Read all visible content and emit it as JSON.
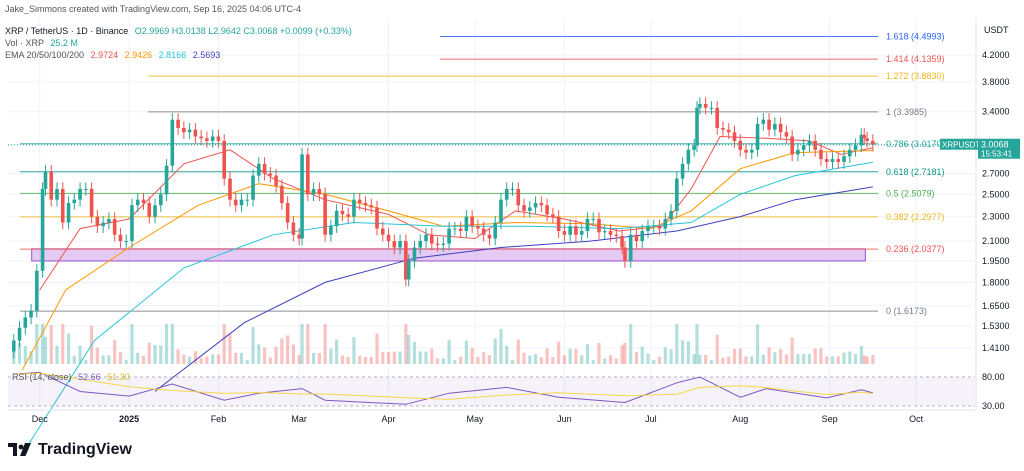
{
  "header": {
    "author_line": "Jake_Simmons created with TradingView.com, Sep 16, 2025 04:06 UTC-4",
    "symbol_line": "XRP / TetherUS · 1D · Binance",
    "ohlc_line": "O2.9969 H3.0138 L2.9642 C3.0068 +0.0099 (+0.33%)",
    "vol_label": "Vol · XRP",
    "vol_value": "25.2 M",
    "ema_label": "EMA 20/50/100/200",
    "ema_values": [
      "2.9724",
      "2.9426",
      "2.8166",
      "2.5693"
    ]
  },
  "brand": {
    "name": "TradingView"
  },
  "price_label": {
    "symbol": "XRPUSDT",
    "price": "3.0068",
    "countdown": "15:53:41"
  },
  "colors": {
    "up": "#26a69a",
    "down": "#ef5350",
    "ema20": "#ef5350",
    "ema50": "#ff9800",
    "ema100": "#26c6da",
    "ema200": "#3f3fbf",
    "rsi": "#7e57c2",
    "rsi_ma": "#f7d74a",
    "zone": "#c58ae5"
  },
  "chart_data": {
    "type": "candlestick",
    "title": "XRP / TetherUS · 1D · Binance",
    "currency": "USDT",
    "y_axis": {
      "scale": "log",
      "ticks": [
        "4.2000",
        "3.8000",
        "3.4000",
        "3.0000",
        "2.7000",
        "2.5000",
        "2.3000",
        "2.1000",
        "1.9500",
        "1.8000",
        "1.6500",
        "1.5300",
        "1.4100"
      ]
    },
    "x_axis": {
      "ticks": [
        "Dec",
        "2025",
        "Feb",
        "Mar",
        "Apr",
        "May",
        "Jun",
        "Jul",
        "Aug",
        "Sep",
        "Oct"
      ]
    },
    "fib_levels": [
      {
        "ratio": "1.618",
        "price": 4.4993,
        "label": "1.618 (4.4993)",
        "color": "#2962ff"
      },
      {
        "ratio": "1.414",
        "price": 4.1359,
        "label": "1.414 (4.1359)",
        "color": "#ef5350"
      },
      {
        "ratio": "1.272",
        "price": 3.883,
        "label": "1.272 (3.8830)",
        "color": "#f2b51d"
      },
      {
        "ratio": "1",
        "price": 3.3985,
        "label": "1 (3.3985)",
        "color": "#787b86"
      },
      {
        "ratio": "0.786",
        "price": 3.017,
        "label": "0.786 (3.0170)",
        "color": "#26a69a"
      },
      {
        "ratio": "0.618",
        "price": 2.7181,
        "label": "0.618 (2.7181)",
        "color": "#089981"
      },
      {
        "ratio": "0.5",
        "price": 2.5079,
        "label": "0.5 (2.5079)",
        "color": "#4caf50"
      },
      {
        "ratio": "0.382",
        "price": 2.2977,
        "label": "0.382 (2.2977)",
        "color": "#f2b51d"
      },
      {
        "ratio": "0.236",
        "price": 2.0377,
        "label": "0.236 (2.0377)",
        "color": "#ef5350"
      },
      {
        "ratio": "0",
        "price": 1.6173,
        "label": "0 (1.6173)",
        "color": "#787b86"
      }
    ],
    "support_zone": {
      "low": 1.95,
      "high": 2.04,
      "start_date": "2024-12-01",
      "end_date": "2025-09-12"
    },
    "last_close": 3.0068,
    "candles": [
      {
        "date": "2024-11-22",
        "close": 1.45
      },
      {
        "date": "2024-11-24",
        "close": 1.52
      },
      {
        "date": "2024-11-26",
        "close": 1.58
      },
      {
        "date": "2024-11-28",
        "close": 1.62
      },
      {
        "date": "2024-11-30",
        "close": 1.88
      },
      {
        "date": "2024-12-02",
        "close": 2.55
      },
      {
        "date": "2024-12-03",
        "close": 2.72
      },
      {
        "date": "2024-12-05",
        "close": 2.45
      },
      {
        "date": "2024-12-07",
        "close": 2.55
      },
      {
        "date": "2024-12-09",
        "close": 2.25
      },
      {
        "date": "2024-12-11",
        "close": 2.42
      },
      {
        "date": "2024-12-13",
        "close": 2.45
      },
      {
        "date": "2024-12-15",
        "close": 2.55
      },
      {
        "date": "2024-12-17",
        "close": 2.55
      },
      {
        "date": "2024-12-19",
        "close": 2.3
      },
      {
        "date": "2024-12-21",
        "close": 2.22
      },
      {
        "date": "2024-12-23",
        "close": 2.25
      },
      {
        "date": "2024-12-25",
        "close": 2.28
      },
      {
        "date": "2024-12-27",
        "close": 2.15
      },
      {
        "date": "2024-12-29",
        "close": 2.1
      },
      {
        "date": "2024-12-31",
        "close": 2.1
      },
      {
        "date": "2025-01-02",
        "close": 2.4
      },
      {
        "date": "2025-01-04",
        "close": 2.45
      },
      {
        "date": "2025-01-06",
        "close": 2.42
      },
      {
        "date": "2025-01-08",
        "close": 2.3
      },
      {
        "date": "2025-01-10",
        "close": 2.4
      },
      {
        "date": "2025-01-12",
        "close": 2.5
      },
      {
        "date": "2025-01-14",
        "close": 2.78
      },
      {
        "date": "2025-01-16",
        "close": 3.3
      },
      {
        "date": "2025-01-18",
        "close": 3.2
      },
      {
        "date": "2025-01-20",
        "close": 3.15
      },
      {
        "date": "2025-01-22",
        "close": 3.18
      },
      {
        "date": "2025-01-24",
        "close": 3.1
      },
      {
        "date": "2025-01-26",
        "close": 3.08
      },
      {
        "date": "2025-01-28",
        "close": 3.05
      },
      {
        "date": "2025-01-30",
        "close": 3.1
      },
      {
        "date": "2025-02-01",
        "close": 3.05
      },
      {
        "date": "2025-02-03",
        "close": 2.65
      },
      {
        "date": "2025-02-05",
        "close": 2.45
      },
      {
        "date": "2025-02-07",
        "close": 2.4
      },
      {
        "date": "2025-02-09",
        "close": 2.45
      },
      {
        "date": "2025-02-11",
        "close": 2.45
      },
      {
        "date": "2025-02-13",
        "close": 2.68
      },
      {
        "date": "2025-02-15",
        "close": 2.8
      },
      {
        "date": "2025-02-17",
        "close": 2.7
      },
      {
        "date": "2025-02-19",
        "close": 2.68
      },
      {
        "date": "2025-02-21",
        "close": 2.58
      },
      {
        "date": "2025-02-23",
        "close": 2.42
      },
      {
        "date": "2025-02-25",
        "close": 2.25
      },
      {
        "date": "2025-02-27",
        "close": 2.15
      },
      {
        "date": "2025-03-01",
        "close": 2.12
      },
      {
        "date": "2025-03-02",
        "close": 2.9
      },
      {
        "date": "2025-03-04",
        "close": 2.5
      },
      {
        "date": "2025-03-06",
        "close": 2.55
      },
      {
        "date": "2025-03-08",
        "close": 2.5
      },
      {
        "date": "2025-03-10",
        "close": 2.15
      },
      {
        "date": "2025-03-12",
        "close": 2.22
      },
      {
        "date": "2025-03-14",
        "close": 2.35
      },
      {
        "date": "2025-03-16",
        "close": 2.32
      },
      {
        "date": "2025-03-18",
        "close": 2.3
      },
      {
        "date": "2025-03-20",
        "close": 2.45
      },
      {
        "date": "2025-03-22",
        "close": 2.42
      },
      {
        "date": "2025-03-24",
        "close": 2.4
      },
      {
        "date": "2025-03-26",
        "close": 2.38
      },
      {
        "date": "2025-03-28",
        "close": 2.2
      },
      {
        "date": "2025-03-30",
        "close": 2.15
      },
      {
        "date": "2025-04-01",
        "close": 2.1
      },
      {
        "date": "2025-04-03",
        "close": 2.05
      },
      {
        "date": "2025-04-05",
        "close": 2.1
      },
      {
        "date": "2025-04-07",
        "close": 1.82
      },
      {
        "date": "2025-04-08",
        "close": 1.95
      },
      {
        "date": "2025-04-10",
        "close": 2.05
      },
      {
        "date": "2025-04-12",
        "close": 2.1
      },
      {
        "date": "2025-04-14",
        "close": 2.15
      },
      {
        "date": "2025-04-16",
        "close": 2.08
      },
      {
        "date": "2025-04-18",
        "close": 2.07
      },
      {
        "date": "2025-04-20",
        "close": 2.08
      },
      {
        "date": "2025-04-22",
        "close": 2.2
      },
      {
        "date": "2025-04-24",
        "close": 2.2
      },
      {
        "date": "2025-04-26",
        "close": 2.18
      },
      {
        "date": "2025-04-28",
        "close": 2.3
      },
      {
        "date": "2025-04-30",
        "close": 2.22
      },
      {
        "date": "2025-05-02",
        "close": 2.2
      },
      {
        "date": "2025-05-04",
        "close": 2.15
      },
      {
        "date": "2025-05-06",
        "close": 2.12
      },
      {
        "date": "2025-05-08",
        "close": 2.25
      },
      {
        "date": "2025-05-10",
        "close": 2.45
      },
      {
        "date": "2025-05-12",
        "close": 2.55
      },
      {
        "date": "2025-05-14",
        "close": 2.55
      },
      {
        "date": "2025-05-16",
        "close": 2.4
      },
      {
        "date": "2025-05-18",
        "close": 2.35
      },
      {
        "date": "2025-05-20",
        "close": 2.38
      },
      {
        "date": "2025-05-22",
        "close": 2.42
      },
      {
        "date": "2025-05-24",
        "close": 2.4
      },
      {
        "date": "2025-05-26",
        "close": 2.32
      },
      {
        "date": "2025-05-28",
        "close": 2.3
      },
      {
        "date": "2025-05-30",
        "close": 2.18
      },
      {
        "date": "2025-06-01",
        "close": 2.15
      },
      {
        "date": "2025-06-03",
        "close": 2.22
      },
      {
        "date": "2025-06-05",
        "close": 2.15
      },
      {
        "date": "2025-06-07",
        "close": 2.18
      },
      {
        "date": "2025-06-09",
        "close": 2.28
      },
      {
        "date": "2025-06-11",
        "close": 2.28
      },
      {
        "date": "2025-06-13",
        "close": 2.17
      },
      {
        "date": "2025-06-15",
        "close": 2.18
      },
      {
        "date": "2025-06-17",
        "close": 2.15
      },
      {
        "date": "2025-06-19",
        "close": 2.14
      },
      {
        "date": "2025-06-21",
        "close": 2.05
      },
      {
        "date": "2025-06-22",
        "close": 1.95
      },
      {
        "date": "2025-06-24",
        "close": 2.15
      },
      {
        "date": "2025-06-26",
        "close": 2.1
      },
      {
        "date": "2025-06-28",
        "close": 2.18
      },
      {
        "date": "2025-06-30",
        "close": 2.22
      },
      {
        "date": "2025-07-02",
        "close": 2.22
      },
      {
        "date": "2025-07-04",
        "close": 2.2
      },
      {
        "date": "2025-07-06",
        "close": 2.28
      },
      {
        "date": "2025-07-08",
        "close": 2.35
      },
      {
        "date": "2025-07-10",
        "close": 2.65
      },
      {
        "date": "2025-07-12",
        "close": 2.8
      },
      {
        "date": "2025-07-14",
        "close": 2.95
      },
      {
        "date": "2025-07-16",
        "close": 3.0
      },
      {
        "date": "2025-07-17",
        "close": 3.45
      },
      {
        "date": "2025-07-18",
        "close": 3.5
      },
      {
        "date": "2025-07-20",
        "close": 3.45
      },
      {
        "date": "2025-07-22",
        "close": 3.45
      },
      {
        "date": "2025-07-24",
        "close": 3.2
      },
      {
        "date": "2025-07-26",
        "close": 3.18
      },
      {
        "date": "2025-07-28",
        "close": 3.15
      },
      {
        "date": "2025-07-30",
        "close": 3.05
      },
      {
        "date": "2025-08-01",
        "close": 2.95
      },
      {
        "date": "2025-08-03",
        "close": 2.92
      },
      {
        "date": "2025-08-05",
        "close": 2.95
      },
      {
        "date": "2025-08-07",
        "close": 3.25
      },
      {
        "date": "2025-08-09",
        "close": 3.3
      },
      {
        "date": "2025-08-11",
        "close": 3.18
      },
      {
        "date": "2025-08-13",
        "close": 3.25
      },
      {
        "date": "2025-08-15",
        "close": 3.15
      },
      {
        "date": "2025-08-17",
        "close": 3.1
      },
      {
        "date": "2025-08-19",
        "close": 2.9
      },
      {
        "date": "2025-08-21",
        "close": 2.95
      },
      {
        "date": "2025-08-23",
        "close": 3.0
      },
      {
        "date": "2025-08-25",
        "close": 3.05
      },
      {
        "date": "2025-08-27",
        "close": 2.95
      },
      {
        "date": "2025-08-29",
        "close": 2.85
      },
      {
        "date": "2025-08-31",
        "close": 2.82
      },
      {
        "date": "2025-09-02",
        "close": 2.85
      },
      {
        "date": "2025-09-04",
        "close": 2.82
      },
      {
        "date": "2025-09-06",
        "close": 2.88
      },
      {
        "date": "2025-09-08",
        "close": 2.95
      },
      {
        "date": "2025-09-10",
        "close": 3.0
      },
      {
        "date": "2025-09-12",
        "close": 3.12
      },
      {
        "date": "2025-09-13",
        "close": 3.08
      },
      {
        "date": "2025-09-14",
        "close": 3.05
      },
      {
        "date": "2025-09-16",
        "close": 3.0068
      }
    ],
    "ema": {
      "ema20": {
        "name": "EMA 20",
        "points": [
          [
            "2024-12-01",
            1.75
          ],
          [
            "2024-12-15",
            2.2
          ],
          [
            "2025-01-01",
            2.28
          ],
          [
            "2025-01-20",
            2.8
          ],
          [
            "2025-02-05",
            2.95
          ],
          [
            "2025-02-20",
            2.65
          ],
          [
            "2025-03-10",
            2.45
          ],
          [
            "2025-04-01",
            2.32
          ],
          [
            "2025-04-15",
            2.15
          ],
          [
            "2025-05-01",
            2.12
          ],
          [
            "2025-05-15",
            2.35
          ],
          [
            "2025-06-01",
            2.28
          ],
          [
            "2025-06-20",
            2.18
          ],
          [
            "2025-07-05",
            2.22
          ],
          [
            "2025-07-15",
            2.55
          ],
          [
            "2025-07-25",
            3.1
          ],
          [
            "2025-08-10",
            3.08
          ],
          [
            "2025-08-25",
            3.05
          ],
          [
            "2025-09-05",
            2.9
          ],
          [
            "2025-09-16",
            2.9724
          ]
        ]
      },
      "ema50": {
        "name": "EMA 50",
        "points": [
          [
            "2024-11-25",
            1.3
          ],
          [
            "2024-12-10",
            1.75
          ],
          [
            "2025-01-01",
            2.05
          ],
          [
            "2025-01-25",
            2.4
          ],
          [
            "2025-02-15",
            2.6
          ],
          [
            "2025-03-10",
            2.5
          ],
          [
            "2025-04-01",
            2.35
          ],
          [
            "2025-04-20",
            2.22
          ],
          [
            "2025-05-15",
            2.25
          ],
          [
            "2025-06-10",
            2.24
          ],
          [
            "2025-07-01",
            2.2
          ],
          [
            "2025-07-15",
            2.35
          ],
          [
            "2025-08-01",
            2.75
          ],
          [
            "2025-08-20",
            2.92
          ],
          [
            "2025-09-16",
            2.9426
          ]
        ]
      },
      "ema100": {
        "name": "EMA 100",
        "points": [
          [
            "2024-11-25",
            0.95
          ],
          [
            "2024-12-20",
            1.45
          ],
          [
            "2025-01-20",
            1.9
          ],
          [
            "2025-02-20",
            2.15
          ],
          [
            "2025-03-20",
            2.25
          ],
          [
            "2025-04-20",
            2.22
          ],
          [
            "2025-05-20",
            2.22
          ],
          [
            "2025-06-20",
            2.2
          ],
          [
            "2025-07-15",
            2.25
          ],
          [
            "2025-08-01",
            2.5
          ],
          [
            "2025-08-20",
            2.68
          ],
          [
            "2025-09-16",
            2.8166
          ]
        ]
      },
      "ema200": {
        "name": "EMA 200",
        "points": [
          [
            "2025-01-10",
            1.2
          ],
          [
            "2025-02-10",
            1.55
          ],
          [
            "2025-03-10",
            1.8
          ],
          [
            "2025-04-10",
            1.97
          ],
          [
            "2025-05-10",
            2.05
          ],
          [
            "2025-06-10",
            2.1
          ],
          [
            "2025-07-10",
            2.18
          ],
          [
            "2025-08-01",
            2.3
          ],
          [
            "2025-08-20",
            2.45
          ],
          [
            "2025-09-16",
            2.5693
          ]
        ]
      }
    },
    "rsi": {
      "label": "RSI (14, close)",
      "value": "52.66",
      "ma_value": "51.30",
      "upper_band": "80.00",
      "lower_band": "30.00",
      "points": [
        [
          "2024-11-22",
          85
        ],
        [
          "2024-12-01",
          88
        ],
        [
          "2024-12-15",
          55
        ],
        [
          "2025-01-01",
          47
        ],
        [
          "2025-01-16",
          68
        ],
        [
          "2025-02-03",
          40
        ],
        [
          "2025-02-15",
          52
        ],
        [
          "2025-03-02",
          60
        ],
        [
          "2025-03-10",
          40
        ],
        [
          "2025-04-07",
          33
        ],
        [
          "2025-04-22",
          52
        ],
        [
          "2025-05-12",
          62
        ],
        [
          "2025-05-30",
          45
        ],
        [
          "2025-06-22",
          36
        ],
        [
          "2025-07-10",
          70
        ],
        [
          "2025-07-18",
          80
        ],
        [
          "2025-08-01",
          45
        ],
        [
          "2025-08-10",
          60
        ],
        [
          "2025-08-31",
          44
        ],
        [
          "2025-09-12",
          58
        ],
        [
          "2025-09-16",
          52.66
        ]
      ]
    }
  }
}
